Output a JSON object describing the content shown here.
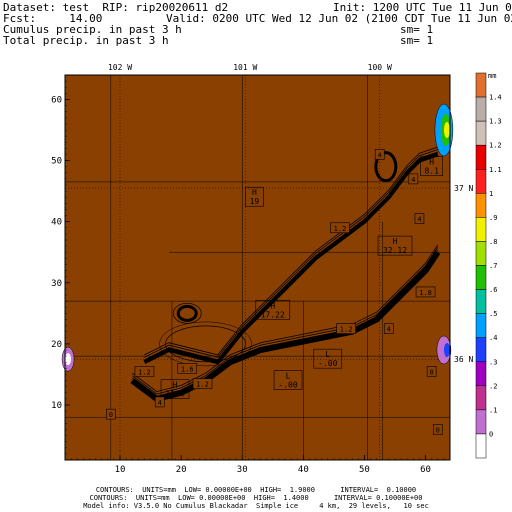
{
  "header": {
    "line1_left": "Dataset: test  RIP: rip20020611 d2",
    "line1_right": "Init: 1200 UTC Tue 11 Jun 02",
    "line2_left": "Fcst:     14.00",
    "line2_right": "Valid: 0200 UTC Wed 12 Jun 02 (2100 CDT Tue 11 Jun 02)",
    "line3_left": "Cumulus precip. in past 3 h",
    "line3_right": "sm= 1",
    "line4_left": "Total precip. in past 3 h",
    "line4_right": "sm= 1"
  },
  "map": {
    "background_color": "#8a4000",
    "top_labels": [
      {
        "text": "102 W",
        "i": 10
      },
      {
        "text": "101 W",
        "i": 30.5
      },
      {
        "text": "100 W",
        "i": 52.5
      }
    ],
    "right_labels": [
      {
        "text": "37 N",
        "j": 45.5
      },
      {
        "text": "36 N",
        "j": 17.5
      }
    ],
    "x_ticks": [
      10,
      20,
      30,
      40,
      50,
      60
    ],
    "y_ticks": [
      10,
      20,
      30,
      40,
      50,
      60
    ],
    "x_range": [
      1,
      64
    ],
    "y_range": [
      1,
      64
    ],
    "highs_lows": [
      {
        "kind": "H",
        "value": "17.22",
        "i": 35,
        "j": 25.5
      },
      {
        "kind": "H",
        "value": "32.12",
        "i": 55,
        "j": 36
      },
      {
        "kind": "H",
        "value": "11.4",
        "i": 19,
        "j": 12.5
      },
      {
        "kind": "H",
        "value": "19",
        "i": 32,
        "j": 44
      },
      {
        "kind": "H",
        "value": "8.1",
        "i": 61,
        "j": 49
      },
      {
        "kind": "L",
        "value": "-.00",
        "i": 37.5,
        "j": 14
      },
      {
        "kind": "L",
        "value": "-.00",
        "i": 44,
        "j": 17.5
      }
    ],
    "contour_labels": [
      {
        "text": "4",
        "i": 52.5,
        "j": 51
      },
      {
        "text": "4",
        "i": 58,
        "j": 47
      },
      {
        "text": "4",
        "i": 59,
        "j": 40.5
      },
      {
        "text": "1.2",
        "i": 46,
        "j": 39
      },
      {
        "text": "1.8",
        "i": 60,
        "j": 28.5
      },
      {
        "text": "1.2",
        "i": 47,
        "j": 22.5
      },
      {
        "text": "4",
        "i": 54,
        "j": 22.5
      },
      {
        "text": "1.6",
        "i": 21,
        "j": 16
      },
      {
        "text": "1.2",
        "i": 23.5,
        "j": 13.5
      },
      {
        "text": "4",
        "i": 16.5,
        "j": 10.5
      },
      {
        "text": "1.2",
        "i": 14,
        "j": 15.5
      },
      {
        "text": "0",
        "i": 8.5,
        "j": 8.5
      },
      {
        "text": "0",
        "i": 61,
        "j": 15.5
      },
      {
        "text": "0",
        "i": 62,
        "j": 6
      }
    ]
  },
  "colorbar": {
    "unit": "mm",
    "levels": [
      "1.4",
      "1.3",
      "1.2",
      "1.1",
      "1",
      ".9",
      ".8",
      ".7",
      ".6",
      ".5",
      ".4",
      ".3",
      ".2",
      ".1",
      "0"
    ],
    "colors": [
      "#e07030",
      "#b8b0a8",
      "#d0c0b8",
      "#e80000",
      "#ff2020",
      "#ff9000",
      "#f0f000",
      "#a0e000",
      "#20c000",
      "#00c0a0",
      "#00a0ff",
      "#2040ff",
      "#a000c0",
      "#c03090",
      "#c070d0",
      "#ffffff"
    ]
  },
  "footer": {
    "line1": "CONTOURS:  UNITS=mm  LOW= 0.00000E+00  HIGH=  1.9000      INTERVAL=  0.10000",
    "line2": "CONTOURS:  UNITS=mm  LOW= 0.00000E+00  HIGH=  1.4000      INTERVAL= 0.10000E+00",
    "line3": "Model info: V3.5.0 No Cumulus Blackadar  Simple ice     4 km,  29 levels,   10 sec"
  }
}
